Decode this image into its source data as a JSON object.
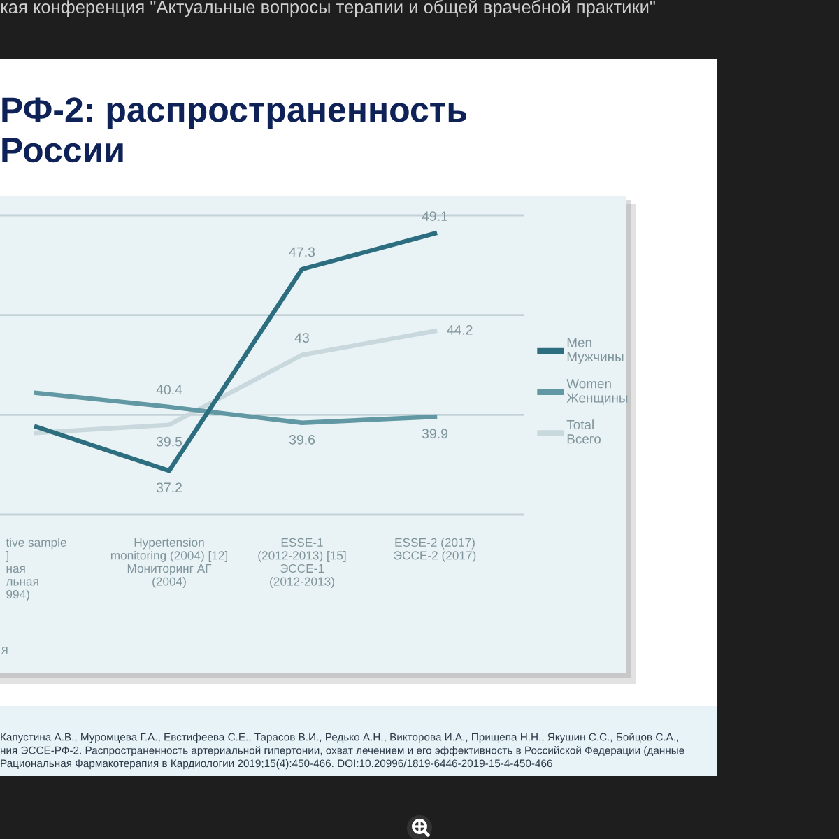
{
  "chart_data": {
    "type": "line",
    "title": "РФ-2: распространенность\nРоссии",
    "categories": [
      "tive sample\n]\nная\nльная\n994)",
      "Hypertension\nmonitoring (2004) [12]\nМониторинг АГ\n(2004)",
      "ESSE-1\n(2012-2013) [15]\nЭССЕ-1\n(2012-2013)",
      "ESSE-2 (2017)\nЭССЕ-2 (2017)"
    ],
    "series": [
      {
        "name": "Men\nМужчины",
        "color": "#2c6e7f",
        "values": [
          39.4,
          37.2,
          47.3,
          49.1
        ],
        "value_labels": [
          null,
          "37.2",
          "47.3",
          "49.1"
        ]
      },
      {
        "name": "Women\nЖенщины",
        "color": "#6198a4",
        "values": [
          41.1,
          40.4,
          39.6,
          39.9
        ],
        "value_labels": [
          null,
          "40.4",
          "39.6",
          "39.9"
        ]
      },
      {
        "name": "Total\nВсего",
        "color": "#c8d8dc",
        "values": [
          39.1,
          39.5,
          43,
          44.2
        ],
        "value_labels": [
          null,
          "39.5",
          "43",
          "44.2"
        ]
      }
    ],
    "ylim": [
      35,
      50
    ],
    "yticks": [
      {
        "value": 35,
        "label": null
      },
      {
        "value": 40,
        "label": null
      },
      {
        "value": 45,
        "label": null
      },
      {
        "value": 50,
        "label": null
      }
    ],
    "tick_labels": "x",
    "grid": "y",
    "legend": "right",
    "annotations": [
      "кая конференция \"Актуальные вопросы терапии и общей врачебной практики\"",
      "я",
      "Капустина А.В., Муромцева Г.А., Евстифеева С.Е., Тарасов В.И., Редько А.Н., Викторова И.А., Прищепа Н.Н., Якушин С.С., Бойцов С.А.,\nния ЭССЕ-РФ-2. Распространенность артериальной гипертонии, охват лечением и его эффективность в Российской Федерации (данные\nРациональная Фармакотерапия в Кардиологии 2019;15(4):450-466. DOI:10.20996/1819-6446-2019-15-4-450-466"
    ]
  }
}
